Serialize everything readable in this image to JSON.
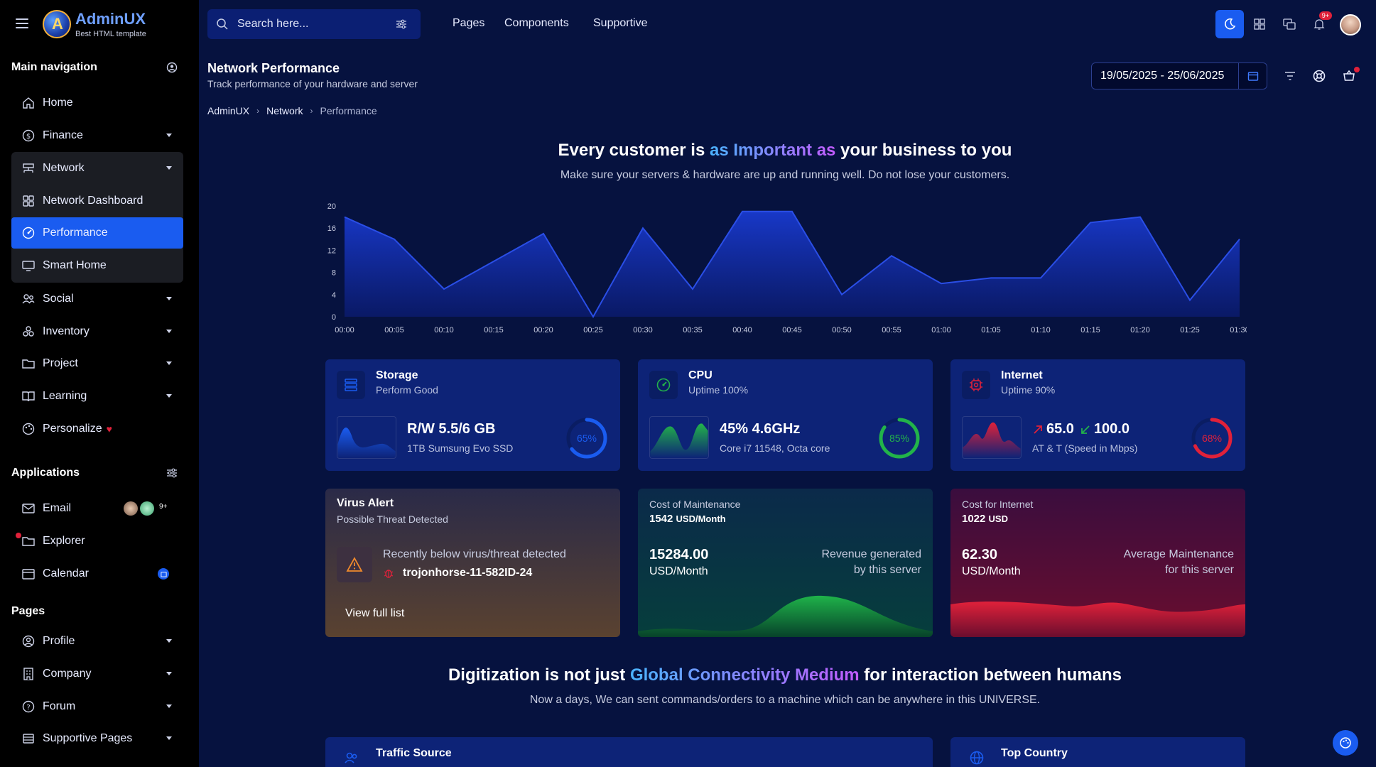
{
  "brand": {
    "name": "AdminUX",
    "tagline": "Best HTML template"
  },
  "sidebar": {
    "main_nav_title": "Main navigation",
    "items": [
      {
        "label": "Home",
        "icon": "home-icon"
      },
      {
        "label": "Finance",
        "icon": "dollar-icon"
      },
      {
        "label": "Network",
        "icon": "network-icon"
      },
      {
        "label": "Network Dashboard",
        "icon": "grid-icon"
      },
      {
        "label": "Performance",
        "icon": "gauge-icon"
      },
      {
        "label": "Smart Home",
        "icon": "monitor-icon"
      },
      {
        "label": "Social",
        "icon": "users-icon"
      },
      {
        "label": "Inventory",
        "icon": "boxes-icon"
      },
      {
        "label": "Project",
        "icon": "folder-icon"
      },
      {
        "label": "Learning",
        "icon": "book-icon"
      },
      {
        "label": "Personalize",
        "icon": "palette-icon"
      }
    ],
    "applications_title": "Applications",
    "apps": [
      {
        "label": "Email",
        "icon": "mail-icon",
        "badge": "9+"
      },
      {
        "label": "Explorer",
        "icon": "folder-icon"
      },
      {
        "label": "Calendar",
        "icon": "calendar-icon"
      }
    ],
    "pages_title": "Pages",
    "pages": [
      {
        "label": "Profile",
        "icon": "user-circle-icon"
      },
      {
        "label": "Company",
        "icon": "building-icon"
      },
      {
        "label": "Forum",
        "icon": "question-icon"
      },
      {
        "label": "Supportive Pages",
        "icon": "layers-icon"
      }
    ]
  },
  "topbar": {
    "search_placeholder": "Search here...",
    "links": [
      "Pages",
      "Components",
      "Supportive"
    ],
    "notif_badge": "9+"
  },
  "header": {
    "title": "Network Performance",
    "subtitle": "Track performance of your hardware and server",
    "breadcrumb": [
      "AdminUX",
      "Network",
      "Performance"
    ],
    "date_range": "19/05/2025 - 25/06/2025"
  },
  "hero": {
    "title_pre": "Every customer is ",
    "title_highlight": "as Important as",
    "title_post": " your business to you",
    "subtitle": "Make sure your servers & hardware are up and running well. Do not lose your customers."
  },
  "chart_data": {
    "type": "area",
    "x": [
      "00:00",
      "00:05",
      "00:10",
      "00:15",
      "00:20",
      "00:25",
      "00:30",
      "00:35",
      "00:40",
      "00:45",
      "00:50",
      "00:55",
      "01:00",
      "01:05",
      "01:10",
      "01:15",
      "01:20",
      "01:25",
      "01:30"
    ],
    "y_ticks": [
      0,
      4,
      8,
      12,
      16,
      20
    ],
    "ylim": [
      0,
      20
    ],
    "series": [
      {
        "values": [
          18,
          14,
          5,
          10,
          15,
          0,
          16,
          5,
          19,
          19,
          4,
          11,
          6,
          7,
          7,
          17,
          18,
          3,
          14
        ]
      }
    ],
    "color": "#1838c8"
  },
  "cards": {
    "storage": {
      "title": "Storage",
      "subtitle": "Perform Good",
      "value": "R/W 5.5/6 GB",
      "detail": "1TB Sumsung Evo SSD",
      "percent": 65,
      "percent_label": "65%",
      "color": "#1a5cf0"
    },
    "cpu": {
      "title": "CPU",
      "subtitle": "Uptime 100%",
      "value": "45% 4.6GHz",
      "detail": "Core i7 11548, Octa core",
      "percent": 85,
      "percent_label": "85%",
      "color": "#22b34a"
    },
    "internet": {
      "title": "Internet",
      "subtitle": "Uptime 90%",
      "up": "65.0",
      "down": "100.0",
      "detail": "AT & T (Speed in Mbps)",
      "percent": 68,
      "percent_label": "68%",
      "color": "#e0213a"
    },
    "virus": {
      "title": "Virus Alert",
      "subtitle": "Possible Threat Detected",
      "message": "Recently below virus/threat detected",
      "threat": "trojonhorse-11-582ID-24",
      "link": "View full list"
    },
    "maintenance": {
      "label": "Cost of Maintenance",
      "amount": "1542",
      "unit": "USD/Month",
      "value": "15284.00",
      "value_unit": "USD/Month",
      "note_line1": "Revenue generated",
      "note_line2": "by this server"
    },
    "internet_cost": {
      "label": "Cost for Internet",
      "amount": "1022",
      "unit": "USD",
      "value": "62.30",
      "value_unit": "USD/Month",
      "note_line1": "Average Maintenance",
      "note_line2": "for this server"
    }
  },
  "footer_hero": {
    "title_pre": "Digitization is not just ",
    "title_highlight": "Global Connectivity Medium",
    "title_post": " for interaction between humans",
    "subtitle": "Now a days, We can sent commands/orders to a machine which can be anywhere in this UNIVERSE."
  },
  "bottom": {
    "traffic_title": "Traffic Source",
    "country_title": "Top Country"
  }
}
